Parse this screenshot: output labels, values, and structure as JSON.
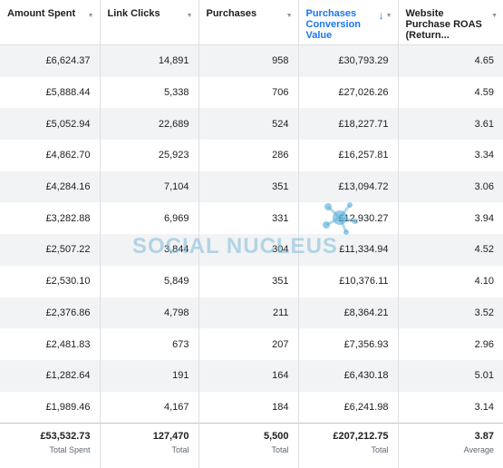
{
  "columns": [
    {
      "label": "Amount Spent",
      "sorted": false
    },
    {
      "label": "Link Clicks",
      "sorted": false
    },
    {
      "label": "Purchases",
      "sorted": false
    },
    {
      "label": "Purchases Conversion Value",
      "sorted": true
    },
    {
      "label": "Website Purchase ROAS (Return...",
      "sorted": false
    }
  ],
  "rows": [
    [
      "£6,624.37",
      "14,891",
      "958",
      "£30,793.29",
      "4.65"
    ],
    [
      "£5,888.44",
      "5,338",
      "706",
      "£27,026.26",
      "4.59"
    ],
    [
      "£5,052.94",
      "22,689",
      "524",
      "£18,227.71",
      "3.61"
    ],
    [
      "£4,862.70",
      "25,923",
      "286",
      "£16,257.81",
      "3.34"
    ],
    [
      "£4,284.16",
      "7,104",
      "351",
      "£13,094.72",
      "3.06"
    ],
    [
      "£3,282.88",
      "6,969",
      "331",
      "£12,930.27",
      "3.94"
    ],
    [
      "£2,507.22",
      "3,844",
      "304",
      "£11,334.94",
      "4.52"
    ],
    [
      "£2,530.10",
      "5,849",
      "351",
      "£10,376.11",
      "4.10"
    ],
    [
      "£2,376.86",
      "4,798",
      "211",
      "£8,364.21",
      "3.52"
    ],
    [
      "£2,481.83",
      "673",
      "207",
      "£7,356.93",
      "2.96"
    ],
    [
      "£1,282.64",
      "191",
      "164",
      "£6,430.18",
      "5.01"
    ],
    [
      "£1,989.46",
      "4,167",
      "184",
      "£6,241.98",
      "3.14"
    ]
  ],
  "totals": [
    {
      "value": "£53,532.73",
      "label": "Total Spent"
    },
    {
      "value": "127,470",
      "label": "Total"
    },
    {
      "value": "5,500",
      "label": "Total"
    },
    {
      "value": "£207,212.75",
      "label": "Total"
    },
    {
      "value": "3.87",
      "label": "Average"
    }
  ],
  "watermark": {
    "text": "SOCIAL NUCLEUS"
  },
  "colors": {
    "accent": "#1877f2",
    "row_alt": "#f2f3f5",
    "border": "#dddfe2"
  },
  "icons": {
    "sort": "sort-down-arrow-icon",
    "column_menu": "chevron-down-icon",
    "watermark_logo": "nucleus-logo-icon"
  }
}
